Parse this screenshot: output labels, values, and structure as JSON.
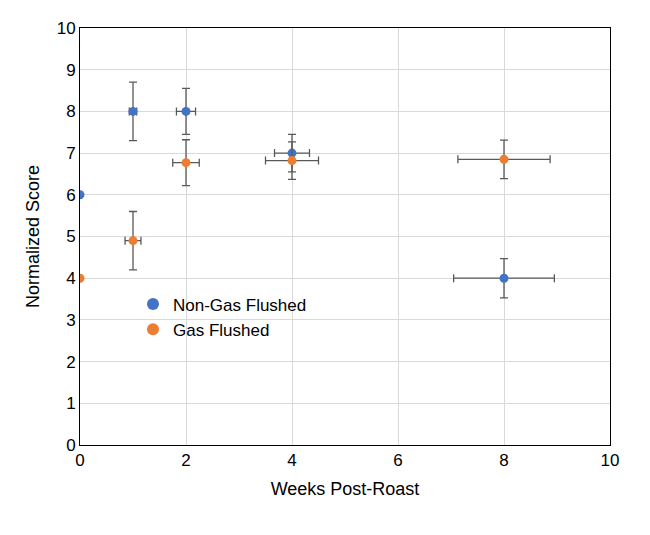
{
  "chart_data": {
    "type": "scatter",
    "x_label": "Weeks Post-Roast",
    "y_label": "Normalized Score",
    "xlim": [
      0,
      10
    ],
    "xticks": [
      0,
      2,
      4,
      6,
      8,
      10
    ],
    "ylim": [
      0,
      10
    ],
    "yticks": [
      0,
      1,
      2,
      3,
      4,
      5,
      6,
      7,
      8,
      9,
      10
    ],
    "grid": true,
    "legend": "lower left",
    "marker": "circle",
    "series": [
      {
        "name": "Non-Gas Flushed",
        "color": "#4472c4",
        "x": [
          0,
          1,
          2,
          4,
          8
        ],
        "values": [
          6,
          8,
          8,
          7,
          4
        ],
        "error_y": [
          0,
          0.7,
          0.55,
          0.45,
          0.47
        ],
        "error_x": [
          0,
          0.07,
          0.18,
          0.33,
          0.95
        ]
      },
      {
        "name": "Gas Flushed",
        "color": "#ed7d31",
        "x": [
          0,
          1,
          2,
          4,
          8
        ],
        "values": [
          4,
          4.9,
          6.77,
          6.82,
          6.85
        ],
        "error_y": [
          0,
          0.7,
          0.55,
          0.45,
          0.46
        ],
        "error_x": [
          0,
          0.15,
          0.25,
          0.5,
          0.87
        ]
      }
    ]
  }
}
